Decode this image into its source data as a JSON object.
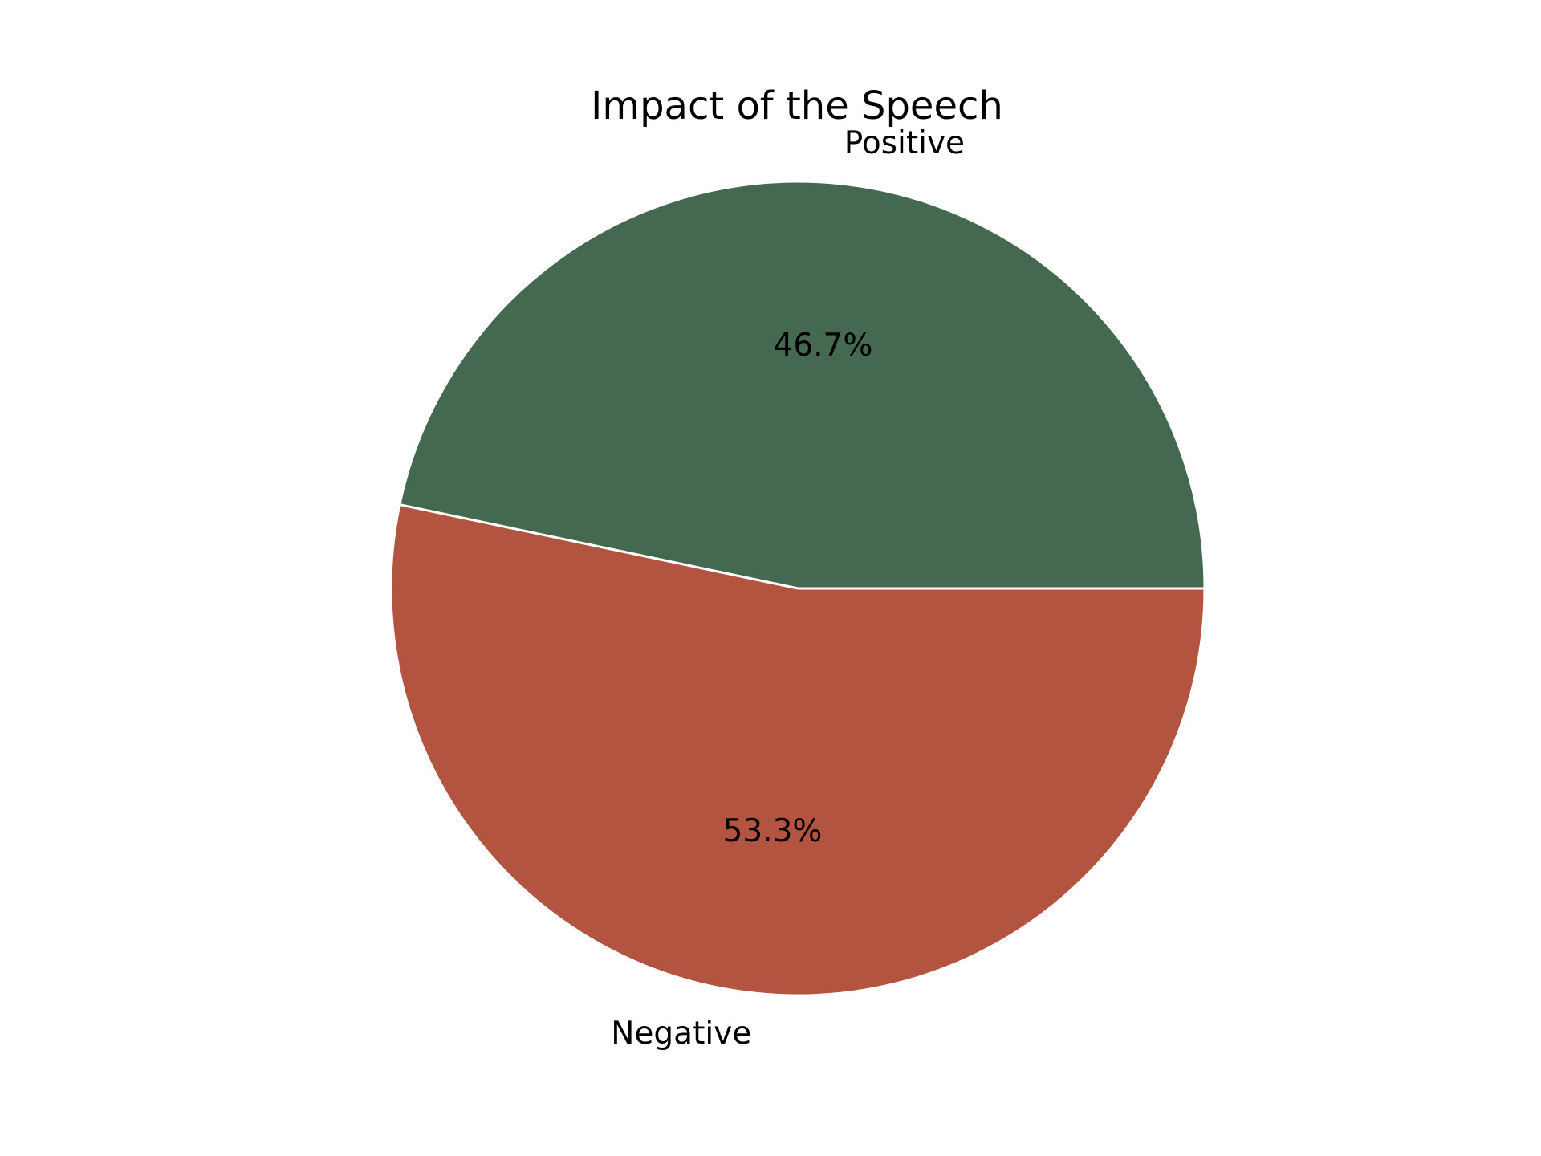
{
  "chart_data": {
    "type": "pie",
    "title": "Impact of the Speech",
    "categories": [
      "Positive",
      "Negative"
    ],
    "values": [
      46.7,
      53.3
    ],
    "value_labels": [
      "46.7%",
      "53.3%"
    ],
    "colors": [
      "#446950",
      "#b2543f"
    ],
    "edge_color": "#ffffff",
    "start_angle_deg": 0,
    "direction": "counterclockwise"
  }
}
